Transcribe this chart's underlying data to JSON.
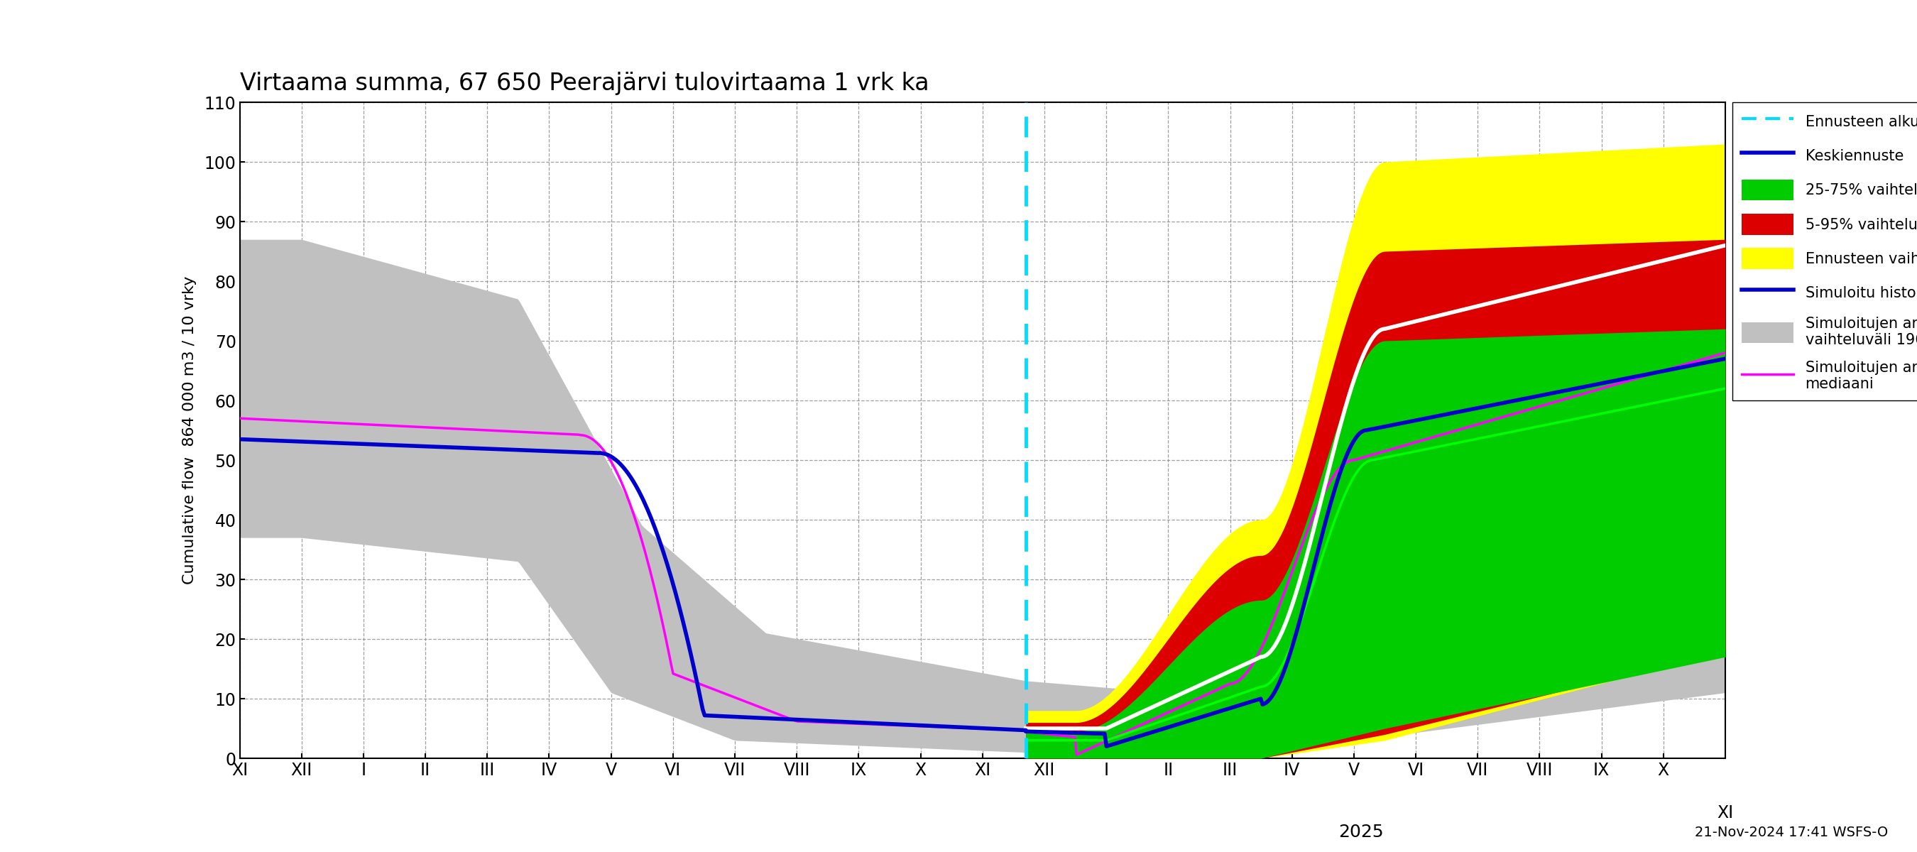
{
  "title": "Virtaama summa, 67 650 Peerajärvi tulovirtaama 1 vrk ka",
  "ylabel": "Cumulative flow  864 000 m3 / 10 vrky",
  "ylim": [
    0,
    110
  ],
  "yticks": [
    0,
    10,
    20,
    30,
    40,
    50,
    60,
    70,
    80,
    90,
    100,
    110
  ],
  "timestamp_label": "21-Nov-2024 17:41 WSFS-O",
  "colors": {
    "cyan_dashed": "#00DDFF",
    "blue_line": "#0000CC",
    "white_line": "#FFFFFF",
    "magenta_line": "#FF00FF",
    "green_line": "#00FF00",
    "gray_band": "#C0C0C0",
    "yellow_band": "#FFFF00",
    "red_band": "#DD0000",
    "green_band": "#00CC00"
  },
  "background_color": "#FFFFFF",
  "grid_color": "#888888"
}
